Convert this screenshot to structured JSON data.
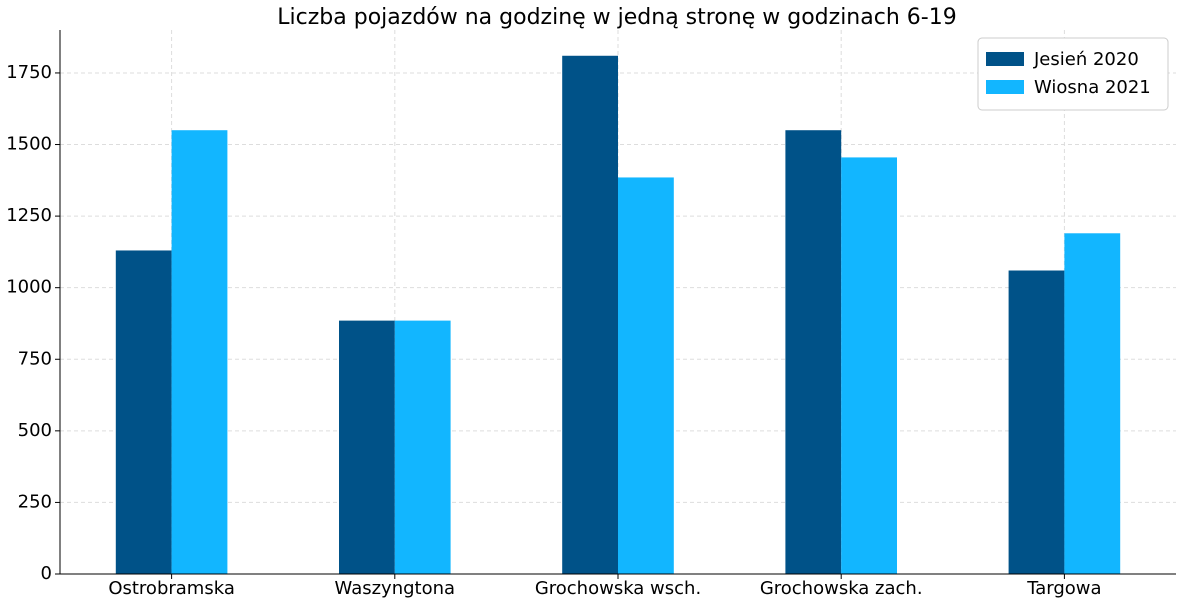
{
  "chart_data": {
    "type": "bar",
    "title": "Liczba pojazdów na godzinę w jedną stronę w godzinach 6-19",
    "categories": [
      "Ostrobramska",
      "Waszyngtona",
      "Grochowska wsch.",
      "Grochowska zach.",
      "Targowa"
    ],
    "series": [
      {
        "name": "Jesień 2020",
        "color": "#005288",
        "values": [
          1130,
          885,
          1810,
          1550,
          1060
        ]
      },
      {
        "name": "Wiosna 2021",
        "color": "#12b6ff",
        "values": [
          1550,
          885,
          1385,
          1455,
          1190
        ]
      }
    ],
    "ylim": [
      0,
      1900
    ],
    "yticks": [
      0,
      250,
      500,
      750,
      1000,
      1250,
      1500,
      1750
    ],
    "grid": true,
    "legend": "upper right"
  }
}
